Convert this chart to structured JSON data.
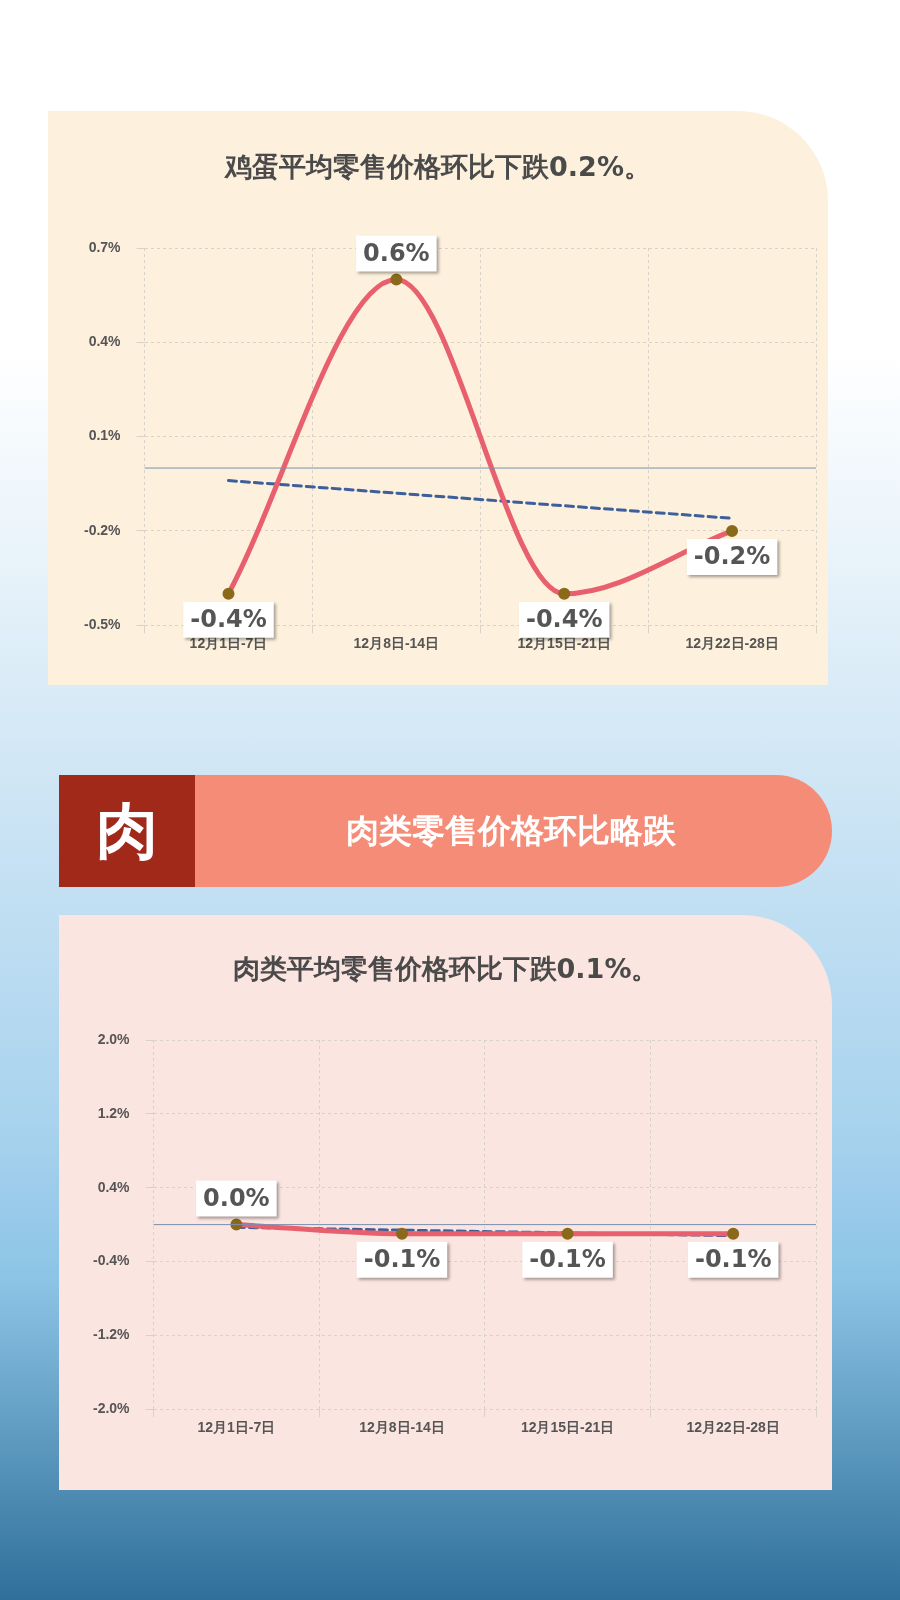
{
  "chart_data": [
    {
      "type": "line",
      "title": "鸡蛋平均零售价格环比下跌0.2%。",
      "categories": [
        "12月1日-7日",
        "12月8日-14日",
        "12月15日-21日",
        "12月22日-28日"
      ],
      "series": [
        {
          "color": "#e8606e",
          "values": [
            -0.4,
            0.6,
            -0.4,
            -0.2
          ],
          "value_labels": [
            "-0.4%",
            "0.6%",
            "-0.4%",
            "-0.2%"
          ]
        },
        {
          "color": "#3d5f9c",
          "line_style": "dashed",
          "marker": "none",
          "values": [
            -0.04,
            -0.08,
            -0.12,
            -0.16
          ]
        }
      ],
      "ylim": [
        -0.5,
        0.7
      ],
      "yticks": [
        {
          "value": -0.5,
          "label": "-0.5%"
        },
        {
          "value": -0.2,
          "label": "-0.2%"
        },
        {
          "value": 0.1,
          "label": "0.1%"
        },
        {
          "value": 0.4,
          "label": "0.4%"
        },
        {
          "value": 0.7,
          "label": "0.7%"
        }
      ],
      "ref_lines": [
        {
          "axis": "y",
          "value": 0,
          "color": "#7a8fb0"
        }
      ],
      "grid": true,
      "legend": false,
      "marker": "circle"
    },
    {
      "type": "other",
      "title": "肉类零售价格环比略跌",
      "annotations": [
        "肉"
      ]
    },
    {
      "type": "line",
      "title": "肉类平均零售价格环比下跌0.1%。",
      "categories": [
        "12月1日-7日",
        "12月8日-14日",
        "12月15日-21日",
        "12月22日-28日"
      ],
      "series": [
        {
          "color": "#e8606e",
          "values": [
            0.0,
            -0.1,
            -0.1,
            -0.1
          ],
          "value_labels": [
            "0.0%",
            "-0.1%",
            "-0.1%",
            "-0.1%"
          ]
        },
        {
          "color": "#3d5f9c",
          "line_style": "dashed",
          "marker": "none",
          "values": [
            -0.03,
            -0.06,
            -0.09,
            -0.12
          ]
        }
      ],
      "ylim": [
        -2.0,
        2.0
      ],
      "yticks": [
        {
          "value": -2,
          "label": "-2.0%"
        },
        {
          "value": -1.2,
          "label": "-1.2%"
        },
        {
          "value": -0.4,
          "label": "-0.4%"
        },
        {
          "value": 0.4,
          "label": "0.4%"
        },
        {
          "value": 1.2,
          "label": "1.2%"
        },
        {
          "value": 2,
          "label": "2.0%"
        }
      ],
      "ref_lines": [
        {
          "axis": "y",
          "value": 0,
          "color": "#7a8fb0"
        }
      ],
      "grid": true,
      "legend": false,
      "marker": "circle"
    }
  ]
}
